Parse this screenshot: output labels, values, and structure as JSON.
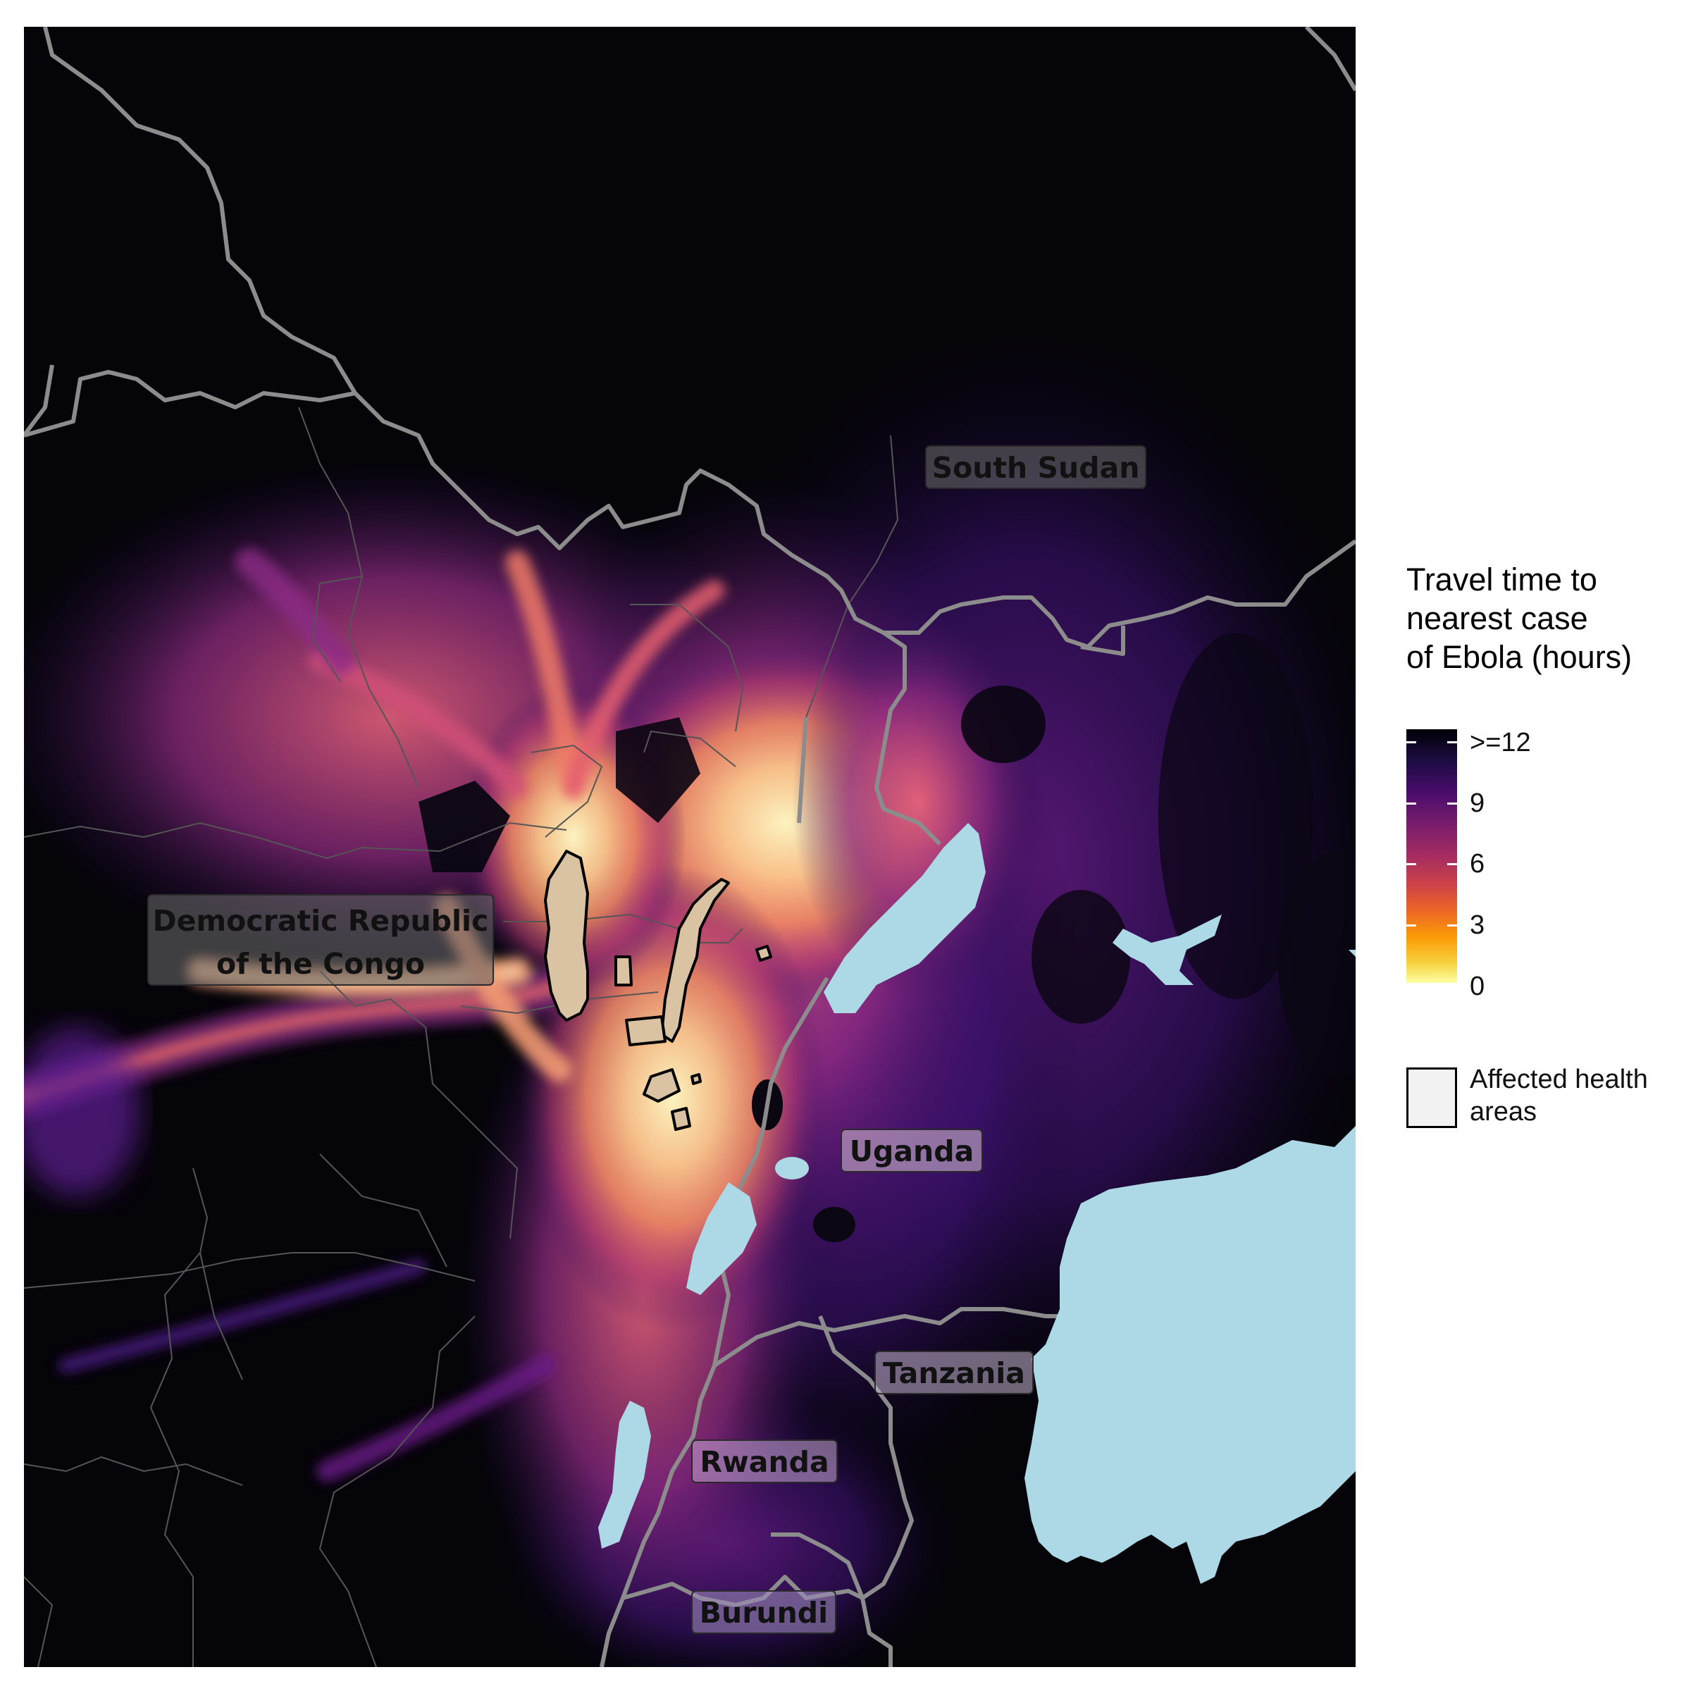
{
  "map": {
    "labels": {
      "south_sudan": "South Sudan",
      "drc_line1": "Democratic Republic",
      "drc_line2": "of the Congo",
      "uganda": "Uganda",
      "tanzania": "Tanzania",
      "rwanda": "Rwanda",
      "burundi": "Burundi"
    },
    "colors": {
      "background": "#050409",
      "lake": "#add8e6",
      "national_border": "#8c8c8c",
      "admin_border": "#555555",
      "affected_area_outline": "#000000"
    }
  },
  "legend": {
    "title": "Travel time to\nnearest case\nof Ebola (hours)",
    "ticks": [
      ">=12",
      "9",
      "6",
      "3",
      "0"
    ],
    "scale_palette": "magma (reversed)",
    "affected_label": "Affected health\nareas"
  }
}
